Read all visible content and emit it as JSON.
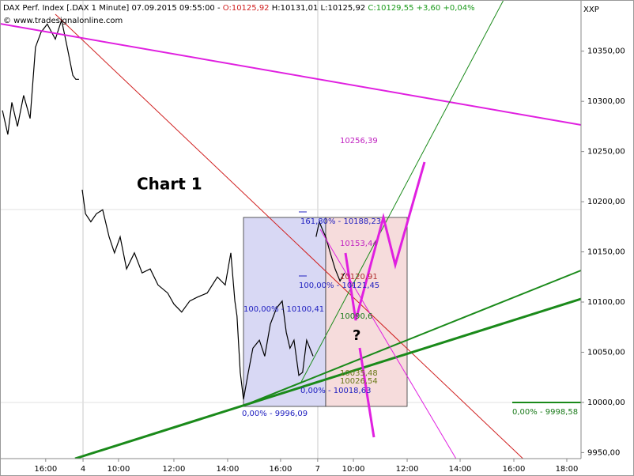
{
  "chart_data": {
    "type": "line",
    "title": "DAX Perf. Index [.DAX  1 Minute] 07.09.2015 09:55:00 -",
    "quote": {
      "open": "O:10125,92",
      "high": "H:10131,01",
      "low": "L:10125,92",
      "close": "C:10129,55",
      "change": "+3,60",
      "change_pct": "+0,04%"
    },
    "source": "© www.tradesignalonline.com",
    "axis_name": "XXP",
    "label": "Chart 1",
    "color": "#000000",
    "x": [
      0.09,
      0.29,
      0.44,
      0.65,
      0.88,
      1.12,
      1.32,
      1.53,
      1.76,
      2.06,
      2.29,
      2.5,
      2.71,
      2.82,
      2.94,
      3.0,
      3.06,
      3.18,
      3.38,
      3.59,
      3.82,
      4.06,
      4.26,
      4.47,
      4.71,
      5.0,
      5.29,
      5.59,
      5.88,
      6.24,
      6.47,
      6.76,
      7.06,
      7.35,
      7.71,
      8.09,
      8.38,
      8.59,
      8.74,
      8.82,
      8.94,
      9.06,
      9.24,
      9.41,
      9.65,
      9.85,
      10.06,
      10.29,
      10.5,
      10.65,
      10.79,
      10.94,
      11.12,
      11.26,
      11.41,
      11.53,
      11.65,
      11.75,
      11.76,
      11.88,
      12.0,
      12.12,
      12.29,
      12.47,
      12.65,
      12.82
    ],
    "values": [
      10291,
      10267,
      10299,
      10275,
      10306,
      10283,
      10354,
      10369,
      10377,
      10362,
      10381,
      10354,
      10326,
      10322,
      10322,
      null,
      10212,
      10188,
      10180,
      10188,
      10192,
      10165,
      10149,
      10165,
      10133,
      10149,
      10129,
      10133,
      10117,
      10109,
      10098,
      10090,
      10101,
      10105,
      10109,
      10125,
      10117,
      10149,
      10101,
      10086,
      10030,
      10003,
      10030,
      10054,
      10062,
      10046,
      10078,
      10094,
      10101,
      10070,
      10054,
      10062,
      10027,
      10030,
      10062,
      10054,
      10046,
      null,
      10165,
      10180,
      10172,
      10165,
      10149,
      10133,
      10121,
      10129
    ],
    "xlim": [
      0,
      21.62
    ],
    "xticks": [
      {
        "value": 1.7,
        "label": "16:00"
      },
      {
        "value": 3.09,
        "label": "4"
      },
      {
        "value": 4.41,
        "label": "10:00"
      },
      {
        "value": 6.47,
        "label": "12:00"
      },
      {
        "value": 8.47,
        "label": "14:00"
      },
      {
        "value": 10.44,
        "label": "16:00"
      },
      {
        "value": 11.82,
        "label": "7"
      },
      {
        "value": 13.15,
        "label": "10:00"
      },
      {
        "value": 15.15,
        "label": "12:00"
      },
      {
        "value": 17.12,
        "label": "14:00"
      },
      {
        "value": 19.12,
        "label": "16:00"
      },
      {
        "value": 21.09,
        "label": "18:00"
      }
    ],
    "ylim": [
      9944,
      10401
    ],
    "yticks": [
      {
        "value": 9950,
        "label": "9950,00"
      },
      {
        "value": 10000,
        "label": "10000,00"
      },
      {
        "value": 10050,
        "label": "10050,00"
      },
      {
        "value": 10100,
        "label": "10100,00"
      },
      {
        "value": 10150,
        "label": "10150,00"
      },
      {
        "value": 10200,
        "label": "10200,00"
      },
      {
        "value": 10250,
        "label": "10250,00"
      },
      {
        "value": 10300,
        "label": "10300,00"
      },
      {
        "value": 10350,
        "label": "10350,00"
      }
    ],
    "annotations": [
      "10256,39",
      "161,80% - 10188,23",
      "10153,44",
      "100,00% - 10121,45",
      "10120,91",
      "100,00% - 10100,41",
      "10090,6",
      "?",
      "10035,48",
      "10026,54",
      "0,00% - 10018,63",
      "0,00% - 9996,09",
      "0,00% - 9998,58"
    ]
  }
}
